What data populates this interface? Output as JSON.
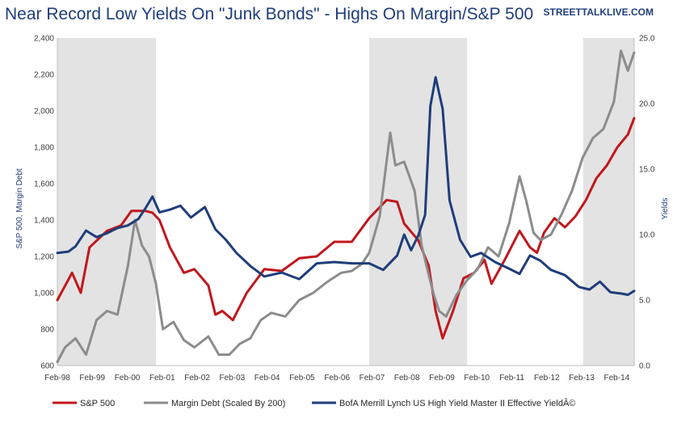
{
  "chart_data": {
    "type": "line",
    "title": "Near Record Low Yields On \"Junk Bonds\" - Highs On Margin/S&P 500",
    "source": "STREETTALKLIVE.COM",
    "ylabel": "S&P 500, Margin Debt",
    "y2label": "Yields",
    "ylim": [
      600,
      2400
    ],
    "y2lim": [
      0,
      25
    ],
    "xlim": [
      1998.08,
      2014.58
    ],
    "y_ticks": [
      "600",
      "800",
      "1,000",
      "1,200",
      "1,400",
      "1,600",
      "1,800",
      "2,000",
      "2,200",
      "2,400"
    ],
    "y2_ticks": [
      "0.0",
      "5.0",
      "10.0",
      "15.0",
      "20.0",
      "25.0"
    ],
    "x_ticks": [
      "Feb-98",
      "Feb-99",
      "Feb-00",
      "Feb-01",
      "Feb-02",
      "Feb-03",
      "Feb-04",
      "Feb-05",
      "Feb-06",
      "Feb-07",
      "Feb-08",
      "Feb-09",
      "Feb-10",
      "Feb-11",
      "Feb-12",
      "Feb-13",
      "Feb-14"
    ],
    "recessions": [
      [
        1998.08,
        2000.9
      ],
      [
        2007.0,
        2009.8
      ],
      [
        2013.12,
        2014.58
      ]
    ],
    "series": [
      {
        "name": "S&P 500",
        "axis": "left",
        "color": "#c0171d",
        "x": [
          1998.08,
          1998.5,
          1998.75,
          1999.0,
          1999.5,
          1999.9,
          2000.2,
          2000.6,
          2000.8,
          2001.0,
          2001.3,
          2001.7,
          2002.0,
          2002.4,
          2002.6,
          2002.8,
          2003.1,
          2003.5,
          2004.0,
          2004.5,
          2005.0,
          2005.5,
          2006.0,
          2006.5,
          2007.0,
          2007.5,
          2007.8,
          2008.0,
          2008.4,
          2008.7,
          2008.9,
          2009.1,
          2009.4,
          2009.7,
          2010.0,
          2010.3,
          2010.5,
          2010.9,
          2011.3,
          2011.6,
          2011.8,
          2012.0,
          2012.3,
          2012.6,
          2012.9,
          2013.2,
          2013.5,
          2013.8,
          2014.1,
          2014.4,
          2014.58
        ],
        "y": [
          960,
          1110,
          1000,
          1250,
          1340,
          1370,
          1450,
          1450,
          1440,
          1400,
          1250,
          1110,
          1130,
          1040,
          880,
          900,
          850,
          1000,
          1130,
          1120,
          1190,
          1200,
          1280,
          1280,
          1410,
          1510,
          1500,
          1380,
          1290,
          1150,
          900,
          750,
          900,
          1080,
          1110,
          1180,
          1050,
          1190,
          1340,
          1250,
          1220,
          1330,
          1410,
          1360,
          1420,
          1510,
          1630,
          1700,
          1800,
          1870,
          1960
        ]
      },
      {
        "name": "Margin Debt (Scaled By 200)",
        "axis": "left",
        "color": "#8c8c8c",
        "x": [
          1998.08,
          1998.3,
          1998.6,
          1998.9,
          1999.2,
          1999.5,
          1999.8,
          2000.1,
          2000.3,
          2000.5,
          2000.7,
          2000.9,
          2001.1,
          2001.4,
          2001.7,
          2002.0,
          2002.4,
          2002.7,
          2003.0,
          2003.3,
          2003.6,
          2003.9,
          2004.2,
          2004.6,
          2005.0,
          2005.4,
          2005.8,
          2006.2,
          2006.5,
          2006.8,
          2007.0,
          2007.3,
          2007.6,
          2007.75,
          2008.0,
          2008.3,
          2008.5,
          2008.7,
          2008.85,
          2009.0,
          2009.2,
          2009.5,
          2009.8,
          2010.1,
          2010.4,
          2010.7,
          2011.0,
          2011.3,
          2011.5,
          2011.7,
          2011.9,
          2012.2,
          2012.5,
          2012.8,
          2013.1,
          2013.4,
          2013.7,
          2014.0,
          2014.2,
          2014.4,
          2014.58
        ],
        "y": [
          620,
          700,
          750,
          660,
          850,
          900,
          880,
          1150,
          1400,
          1260,
          1200,
          1050,
          800,
          840,
          740,
          700,
          760,
          660,
          660,
          720,
          750,
          850,
          890,
          870,
          960,
          1000,
          1060,
          1110,
          1120,
          1160,
          1220,
          1420,
          1880,
          1700,
          1720,
          1560,
          1260,
          1100,
          990,
          900,
          870,
          990,
          1070,
          1130,
          1250,
          1200,
          1380,
          1640,
          1500,
          1330,
          1290,
          1320,
          1430,
          1560,
          1740,
          1850,
          1900,
          2050,
          2330,
          2220,
          2320
        ]
      },
      {
        "name": "BofA Merrill Lynch US High Yield Master II Effective YieldÂ©",
        "axis": "right",
        "color": "#1f3d7a",
        "x": [
          1998.08,
          1998.4,
          1998.6,
          1998.9,
          1999.2,
          1999.5,
          1999.8,
          2000.1,
          2000.4,
          2000.6,
          2000.8,
          2001.0,
          2001.3,
          2001.6,
          2001.9,
          2002.3,
          2002.6,
          2002.9,
          2003.2,
          2003.6,
          2004.0,
          2004.5,
          2005.0,
          2005.5,
          2006.0,
          2006.5,
          2007.0,
          2007.4,
          2007.8,
          2008.0,
          2008.2,
          2008.4,
          2008.6,
          2008.75,
          2008.9,
          2009.1,
          2009.3,
          2009.6,
          2009.9,
          2010.2,
          2010.6,
          2011.0,
          2011.3,
          2011.6,
          2011.9,
          2012.2,
          2012.6,
          2013.0,
          2013.3,
          2013.6,
          2013.9,
          2014.2,
          2014.4,
          2014.58
        ],
        "y": [
          8.6,
          8.7,
          9.1,
          10.3,
          9.8,
          10.1,
          10.5,
          10.7,
          11.2,
          12.0,
          12.9,
          11.7,
          11.9,
          12.2,
          11.3,
          12.1,
          10.4,
          9.6,
          8.6,
          7.6,
          6.8,
          7.1,
          6.6,
          7.8,
          7.9,
          7.8,
          7.8,
          7.3,
          8.4,
          10.0,
          8.8,
          9.9,
          11.5,
          19.8,
          22.0,
          19.6,
          12.6,
          9.6,
          8.3,
          8.6,
          7.9,
          7.4,
          7.0,
          8.4,
          8.0,
          7.3,
          6.9,
          6.0,
          5.8,
          6.4,
          5.6,
          5.5,
          5.4,
          5.7
        ]
      }
    ]
  }
}
